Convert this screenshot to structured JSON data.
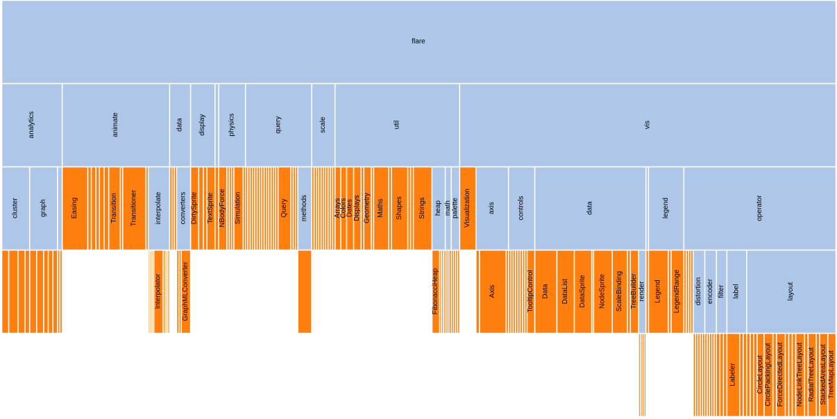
{
  "chart_data": {
    "type": "icicle",
    "title": "",
    "colors": {
      "branch": "#aec7e8",
      "leaf": "#ff7f0e",
      "stroke": "#ffffff"
    },
    "root": {
      "name": "flare",
      "children": [
        {
          "name": "analytics",
          "children": [
            {
              "name": "cluster",
              "children": [
                {
                  "name": "",
                  "value": 3
                },
                {
                  "name": "",
                  "value": 4
                },
                {
                  "name": "",
                  "value": 3
                },
                {
                  "name": "",
                  "value": 2
                }
              ]
            },
            {
              "name": "graph",
              "children": [
                {
                  "name": "",
                  "value": 3
                },
                {
                  "name": "",
                  "value": 3
                },
                {
                  "name": "",
                  "value": 2
                },
                {
                  "name": "",
                  "value": 2
                },
                {
                  "name": "",
                  "value": 2
                }
              ]
            },
            {
              "name": "",
              "children": [
                {
                  "name": "",
                  "value": 1
                },
                {
                  "name": "",
                  "value": 1
                }
              ]
            }
          ]
        },
        {
          "name": "animate",
          "children": [
            {
              "name": "Easing",
              "value": 11
            },
            {
              "name": "",
              "value": 1.5
            },
            {
              "name": "",
              "value": 2
            },
            {
              "name": "",
              "value": 1.5
            },
            {
              "name": "",
              "value": 2
            },
            {
              "name": "",
              "value": 2
            },
            {
              "name": "Transition",
              "value": 5
            },
            {
              "name": "",
              "value": 1
            },
            {
              "name": "Transitioner",
              "value": 10
            },
            {
              "name": "",
              "value": 1
            },
            {
              "name": "interpolate",
              "children": [
                {
                  "name": "",
                  "value": 0.6
                },
                {
                  "name": "",
                  "value": 0.6
                },
                {
                  "name": "",
                  "value": 0.6
                },
                {
                  "name": "",
                  "value": 0.6
                },
                {
                  "name": "Interpolator",
                  "value": 4
                },
                {
                  "name": "",
                  "value": 0.8
                },
                {
                  "name": "",
                  "value": 0.6
                },
                {
                  "name": "",
                  "value": 0.6
                },
                {
                  "name": "",
                  "value": 0.8
                }
              ]
            }
          ]
        },
        {
          "name": "data",
          "children": [
            {
              "name": "",
              "value": 1
            },
            {
              "name": "",
              "value": 1
            },
            {
              "name": "",
              "value": 1
            },
            {
              "name": "converters",
              "children": [
                {
                  "name": "",
                  "value": 1
                },
                {
                  "name": "",
                  "value": 1
                },
                {
                  "name": "GraphMLConverter",
                  "value": 4
                }
              ]
            }
          ]
        },
        {
          "name": "display",
          "children": [
            {
              "name": "DirtySprite",
              "value": 3.5
            },
            {
              "name": "",
              "value": 2
            },
            {
              "name": "",
              "value": 1.5
            },
            {
              "name": "TextSprite",
              "value": 3.5
            }
          ]
        },
        {
          "name": "",
          "children": [
            {
              "name": "",
              "value": 1.6
            }
          ]
        },
        {
          "name": "physics",
          "children": [
            {
              "name": "NBodyForce",
              "value": 3.5
            },
            {
              "name": "",
              "value": 1
            },
            {
              "name": "",
              "value": 1
            },
            {
              "name": "",
              "value": 1
            },
            {
              "name": "Simulation",
              "value": 4
            },
            {
              "name": "",
              "value": 1
            }
          ]
        },
        {
          "name": "query",
          "children": [
            {
              "name": "",
              "value": 1
            },
            {
              "name": "",
              "value": 1
            },
            {
              "name": "",
              "value": 1
            },
            {
              "name": "",
              "value": 1
            },
            {
              "name": "",
              "value": 1
            },
            {
              "name": "",
              "value": 1
            },
            {
              "name": "",
              "value": 1
            },
            {
              "name": "",
              "value": 1
            },
            {
              "name": "",
              "value": 1
            },
            {
              "name": "",
              "value": 1
            },
            {
              "name": "",
              "value": 1
            },
            {
              "name": "",
              "value": 1
            },
            {
              "name": "",
              "value": 1
            },
            {
              "name": "",
              "value": 1
            },
            {
              "name": "Query",
              "value": 5.5
            },
            {
              "name": "",
              "value": 1
            },
            {
              "name": "",
              "value": 1
            },
            {
              "name": "",
              "value": 1
            },
            {
              "name": "methods",
              "children": [
                {
                  "name": "",
                  "value": 6
                }
              ]
            }
          ]
        },
        {
          "name": "scale",
          "children": [
            {
              "name": "",
              "value": 1
            },
            {
              "name": "",
              "value": 1
            },
            {
              "name": "",
              "value": 1
            },
            {
              "name": "",
              "value": 1
            },
            {
              "name": "",
              "value": 1
            },
            {
              "name": "",
              "value": 1
            },
            {
              "name": "",
              "value": 1
            },
            {
              "name": "",
              "value": 1
            },
            {
              "name": "",
              "value": 1
            },
            {
              "name": "",
              "value": 1
            }
          ]
        },
        {
          "name": "util",
          "children": [
            {
              "name": "Arrays",
              "value": 2.5
            },
            {
              "name": "Colors",
              "value": 2.5
            },
            {
              "name": "Dates",
              "value": 3
            },
            {
              "name": "Displays",
              "value": 3.2
            },
            {
              "name": "",
              "value": 1.2
            },
            {
              "name": "Geometry",
              "value": 3.2
            },
            {
              "name": "",
              "value": 1
            },
            {
              "name": "Maths",
              "value": 6.5
            },
            {
              "name": "",
              "value": 1.2
            },
            {
              "name": "Shapes",
              "value": 7
            },
            {
              "name": "",
              "value": 1.2
            },
            {
              "name": "",
              "value": 1.2
            },
            {
              "name": "Strings",
              "value": 8
            },
            {
              "name": "heap",
              "children": [
                {
                  "name": "FibonacciHeap",
                  "value": 3.3
                },
                {
                  "name": "",
                  "value": 0.8
                },
                {
                  "name": "",
                  "value": 0.8
                },
                {
                  "name": "",
                  "value": 0.8
                }
              ]
            },
            {
              "name": "math",
              "children": [
                {
                  "name": "",
                  "value": 0.8
                },
                {
                  "name": "",
                  "value": 0.8
                },
                {
                  "name": "",
                  "value": 1.0
                }
              ]
            },
            {
              "name": "palette",
              "children": [
                {
                  "name": "",
                  "value": 0.9
                },
                {
                  "name": "",
                  "value": 0.9
                },
                {
                  "name": "",
                  "value": 0.9
                },
                {
                  "name": "",
                  "value": 0.9
                }
              ]
            }
          ]
        },
        {
          "name": "vis",
          "children": [
            {
              "name": "Visualization",
              "value": 7
            },
            {
              "name": "axis",
              "children": [
                {
                  "name": "",
                  "value": 1.5
                },
                {
                  "name": "Axis",
                  "value": 11.5
                },
                {
                  "name": "",
                  "value": 1
                }
              ]
            },
            {
              "name": "controls",
              "children": [
                {
                  "name": "",
                  "value": 1
                },
                {
                  "name": "",
                  "value": 1
                },
                {
                  "name": "",
                  "value": 1
                },
                {
                  "name": "",
                  "value": 1
                },
                {
                  "name": "",
                  "value": 1
                },
                {
                  "name": "",
                  "value": 1
                },
                {
                  "name": "",
                  "value": 1
                },
                {
                  "name": "",
                  "value": 1
                },
                {
                  "name": "TooltipControl",
                  "value": 3.3
                }
              ]
            },
            {
              "name": "data",
              "children": [
                {
                  "name": "Data",
                  "value": 9.5
                },
                {
                  "name": "DataList",
                  "value": 7.5
                },
                {
                  "name": "DataSprite",
                  "value": 7.5
                },
                {
                  "name": "",
                  "value": 0.8
                },
                {
                  "name": "NodeSprite",
                  "value": 8
                },
                {
                  "name": "ScaleBinding",
                  "value": 6.5
                },
                {
                  "name": "",
                  "value": 1.3
                },
                {
                  "name": "TreeBuilder",
                  "value": 3.5
                },
                {
                  "name": "render",
                  "children": [
                    {
                      "name": "",
                      "value": 0.8
                    },
                    {
                      "name": "",
                      "value": 0.8
                    },
                    {
                      "name": "",
                      "value": 0.8
                    },
                    {
                      "name": "",
                      "value": 0.8
                    }
                  ]
                }
              ]
            },
            {
              "name": "",
              "children": [
                {
                  "name": "",
                  "value": 1.1
                }
              ]
            },
            {
              "name": "legend",
              "children": [
                {
                  "name": "Legend",
                  "value": 8.5
                },
                {
                  "name": "",
                  "value": 1.2
                },
                {
                  "name": "LegendRange",
                  "value": 5.5
                }
              ]
            },
            {
              "name": "operator",
              "children": [
                {
                  "name": "",
                  "value": 1
                },
                {
                  "name": "",
                  "value": 1
                },
                {
                  "name": "",
                  "value": 1
                },
                {
                  "name": "",
                  "value": 1
                },
                {
                  "name": "distortion",
                  "children": [
                    {
                      "name": "",
                      "value": 1
                    },
                    {
                      "name": "",
                      "value": 1
                    },
                    {
                      "name": "",
                      "value": 1
                    },
                    {
                      "name": "",
                      "value": 1
                    },
                    {
                      "name": "",
                      "value": 1
                    }
                  ]
                },
                {
                  "name": "encoder",
                  "children": [
                    {
                      "name": "",
                      "value": 1
                    },
                    {
                      "name": "",
                      "value": 1
                    },
                    {
                      "name": "",
                      "value": 1
                    },
                    {
                      "name": "",
                      "value": 1
                    },
                    {
                      "name": "",
                      "value": 1
                    }
                  ]
                },
                {
                  "name": "filter",
                  "children": [
                    {
                      "name": "",
                      "value": 1.5
                    },
                    {
                      "name": "",
                      "value": 1.5
                    },
                    {
                      "name": "",
                      "value": 1.5
                    }
                  ]
                },
                {
                  "name": "label",
                  "children": [
                    {
                      "name": "Labeler",
                      "value": 5.5
                    },
                    {
                      "name": "",
                      "value": 1.5
                    },
                    {
                      "name": "",
                      "value": 1.5
                    }
                  ]
                },
                {
                  "name": "layout",
                  "children": [
                    {
                      "name": "",
                      "value": 1.5
                    },
                    {
                      "name": "",
                      "value": 1.5
                    },
                    {
                      "name": "",
                      "value": 1.5
                    },
                    {
                      "name": "CircleLayout",
                      "value": 3
                    },
                    {
                      "name": "CirclePackingLayout",
                      "value": 3.8
                    },
                    {
                      "name": "",
                      "value": 1.5
                    },
                    {
                      "name": "ForceDirectedLayout",
                      "value": 3.8
                    },
                    {
                      "name": "",
                      "value": 1.5
                    },
                    {
                      "name": "",
                      "value": 1.5
                    },
                    {
                      "name": "",
                      "value": 1.5
                    },
                    {
                      "name": "NodeLinkTreeLayout",
                      "value": 3.8
                    },
                    {
                      "name": "",
                      "value": 1.5
                    },
                    {
                      "name": "RadialTreeLayout",
                      "value": 3.5
                    },
                    {
                      "name": "",
                      "value": 1.5
                    },
                    {
                      "name": "StackedAreaLayout",
                      "value": 3.5
                    },
                    {
                      "name": "TreeMapLayout",
                      "value": 3.5
                    }
                  ]
                }
              ]
            }
          ]
        }
      ]
    }
  }
}
